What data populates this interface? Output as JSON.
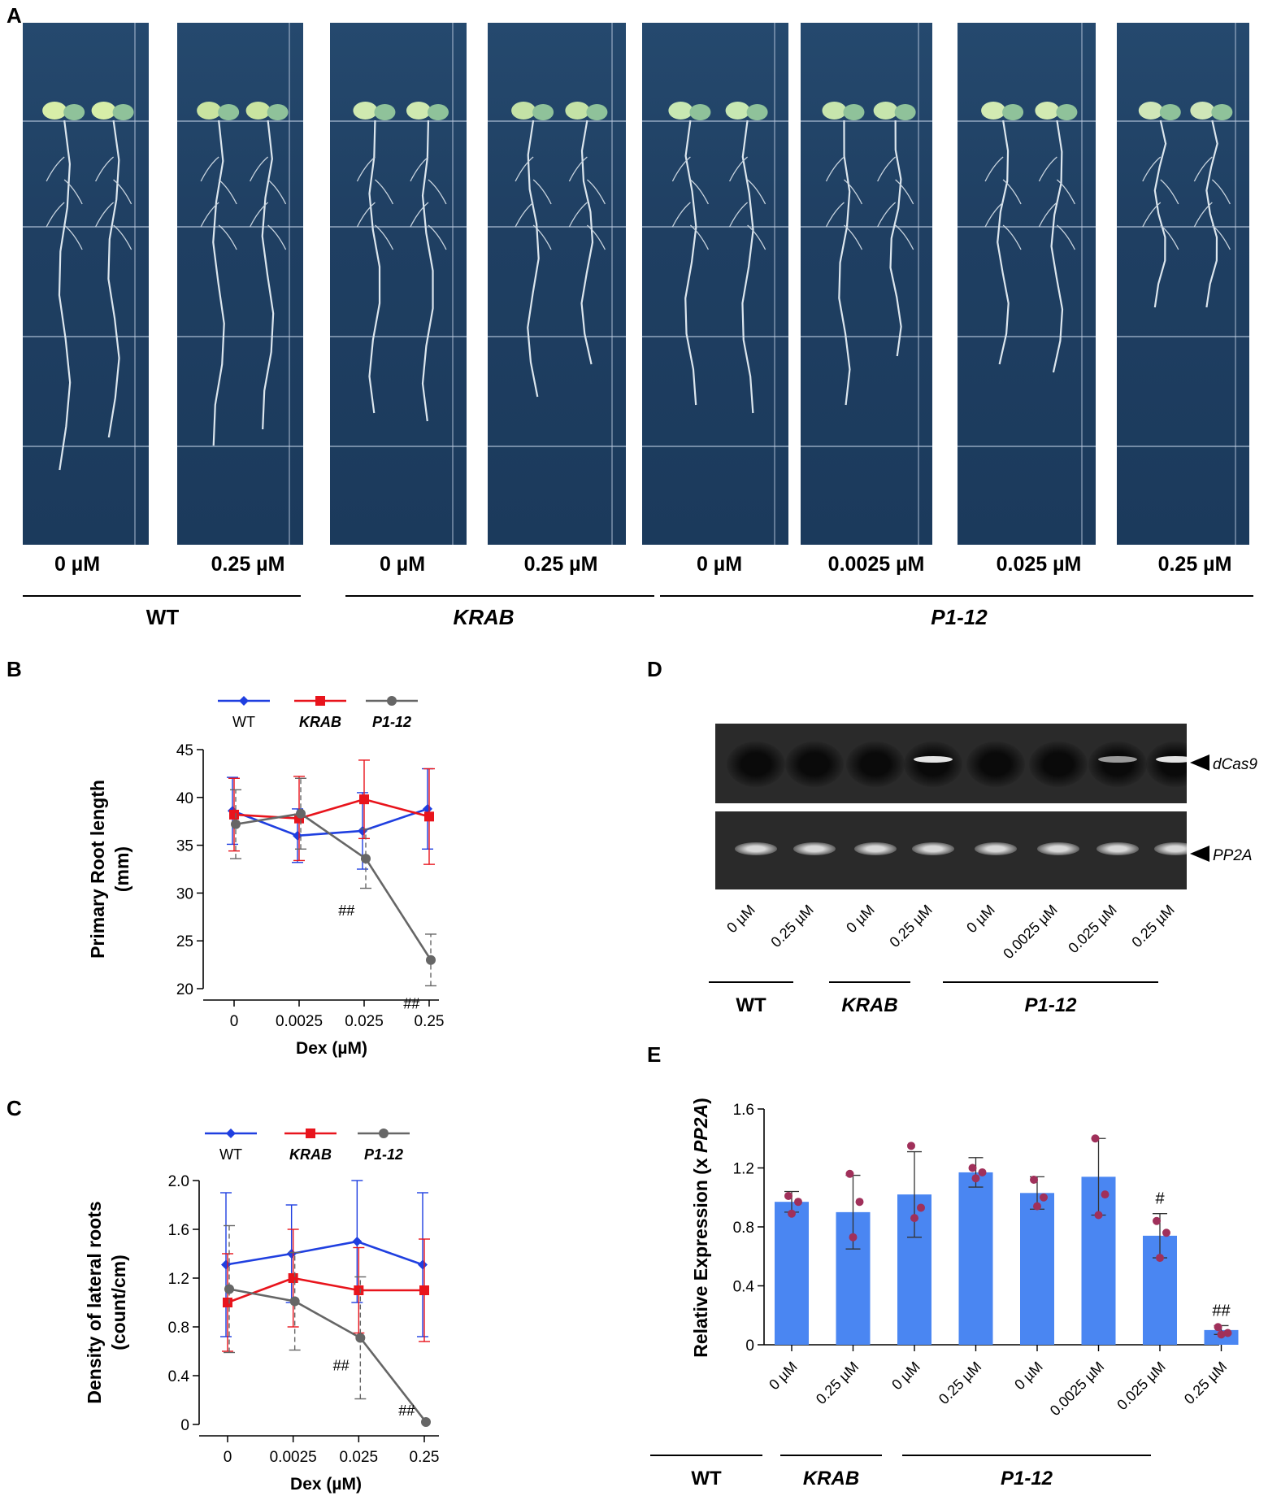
{
  "panel_a": {
    "letter": "A",
    "plates": [
      {
        "conc": "0 µM"
      },
      {
        "conc": "0.25 µM"
      },
      {
        "conc": "0 µM"
      },
      {
        "conc": "0.25 µM"
      },
      {
        "conc": "0 µM"
      },
      {
        "conc": "0.0025 µM"
      },
      {
        "conc": "0.025 µM"
      },
      {
        "conc": "0.25 µM"
      }
    ],
    "groups": [
      "WT",
      "KRAB",
      "P1-12"
    ]
  },
  "panel_b": {
    "letter": "B",
    "chart_data": {
      "type": "line",
      "ylabel_line1": "Primary Root length",
      "ylabel_line2": "(mm)",
      "xlabel": "Dex (µM)",
      "categories": [
        "0",
        "0.0025",
        "0.025",
        "0.25"
      ],
      "yticks": [
        "20",
        "25",
        "30",
        "35",
        "40",
        "45"
      ],
      "ylim": [
        20,
        45
      ],
      "series": [
        {
          "name": "WT",
          "color": "#1f3fe0",
          "marker": "diamond",
          "values": [
            38.6,
            36.0,
            36.5,
            38.8
          ],
          "err": [
            3.5,
            2.8,
            4.0,
            4.2
          ]
        },
        {
          "name": "KRAB",
          "color": "#e8141c",
          "marker": "square",
          "values": [
            38.2,
            37.8,
            39.8,
            38.0
          ],
          "err": [
            3.8,
            4.4,
            4.1,
            5.0
          ]
        },
        {
          "name": "P1-12",
          "color": "#666666",
          "marker": "circle",
          "values": [
            37.2,
            38.3,
            33.6,
            23.0
          ],
          "err": [
            3.6,
            3.7,
            3.1,
            2.7
          ]
        }
      ],
      "annotations": [
        {
          "category": "0.025",
          "text": "##"
        },
        {
          "category": "0.25",
          "text": "##"
        }
      ]
    }
  },
  "panel_c": {
    "letter": "C",
    "chart_data": {
      "type": "line",
      "ylabel_line1": "Density of lateral roots",
      "ylabel_line2": "(count/cm)",
      "xlabel": "Dex (µM)",
      "categories": [
        "0",
        "0.0025",
        "0.025",
        "0.25"
      ],
      "yticks": [
        "0",
        "0.4",
        "0.8",
        "1.2",
        "1.6",
        "2.0"
      ],
      "ylim": [
        0,
        2.0
      ],
      "series": [
        {
          "name": "WT",
          "color": "#1f3fe0",
          "marker": "diamond",
          "values": [
            1.31,
            1.4,
            1.5,
            1.31
          ],
          "err": [
            0.59,
            0.4,
            0.5,
            0.59
          ]
        },
        {
          "name": "KRAB",
          "color": "#e8141c",
          "marker": "square",
          "values": [
            1.0,
            1.2,
            1.1,
            1.1
          ],
          "err": [
            0.4,
            0.4,
            0.35,
            0.42
          ]
        },
        {
          "name": "P1-12",
          "color": "#666666",
          "marker": "circle",
          "values": [
            1.11,
            1.01,
            0.71,
            0.02
          ],
          "err": [
            0.52,
            0.4,
            0.5,
            0.0
          ]
        }
      ],
      "annotations": [
        {
          "category": "0.025",
          "text": "##"
        },
        {
          "category": "0.25",
          "text": "##"
        }
      ]
    }
  },
  "panel_d": {
    "letter": "D",
    "band_labels": [
      "dCas9",
      "PP2A"
    ],
    "lanes": [
      "0 µM",
      "0.25 µM",
      "0 µM",
      "0.25 µM",
      "0 µM",
      "0.0025 µM",
      "0.025 µM",
      "0.25 µM"
    ],
    "groups": [
      "WT",
      "KRAB",
      "P1-12"
    ]
  },
  "panel_e": {
    "letter": "E",
    "chart_data": {
      "type": "bar",
      "ylabel_prefix": "Relative Expression (x ",
      "ylabel_italic": "PP2A",
      "ylabel_suffix": ")",
      "categories": [
        "0 µM",
        "0.25 µM",
        "0 µM",
        "0.25 µM",
        "0 µM",
        "0.0025 µM",
        "0.025 µM",
        "0.25 µM"
      ],
      "values": [
        0.97,
        0.9,
        1.02,
        1.17,
        1.03,
        1.14,
        0.74,
        0.1
      ],
      "err": [
        0.07,
        0.25,
        0.29,
        0.1,
        0.11,
        0.26,
        0.15,
        0.03
      ],
      "points": [
        [
          1.01,
          0.97,
          0.89
        ],
        [
          1.16,
          0.97,
          0.73
        ],
        [
          1.35,
          0.93,
          0.86
        ],
        [
          1.2,
          1.17,
          1.13
        ],
        [
          1.12,
          1.0,
          0.94
        ],
        [
          1.4,
          1.02,
          0.88
        ],
        [
          0.84,
          0.76,
          0.59
        ],
        [
          0.12,
          0.08,
          0.07
        ]
      ],
      "yticks": [
        "0",
        "0.4",
        "0.8",
        "1.2",
        "1.6"
      ],
      "ylim": [
        0,
        1.6
      ],
      "bar_color": "#4a86f2",
      "point_color": "#a0305a",
      "annotations": [
        {
          "index": 6,
          "text": "#"
        },
        {
          "index": 7,
          "text": "##"
        }
      ],
      "groups": [
        "WT",
        "KRAB",
        "P1-12"
      ]
    }
  }
}
